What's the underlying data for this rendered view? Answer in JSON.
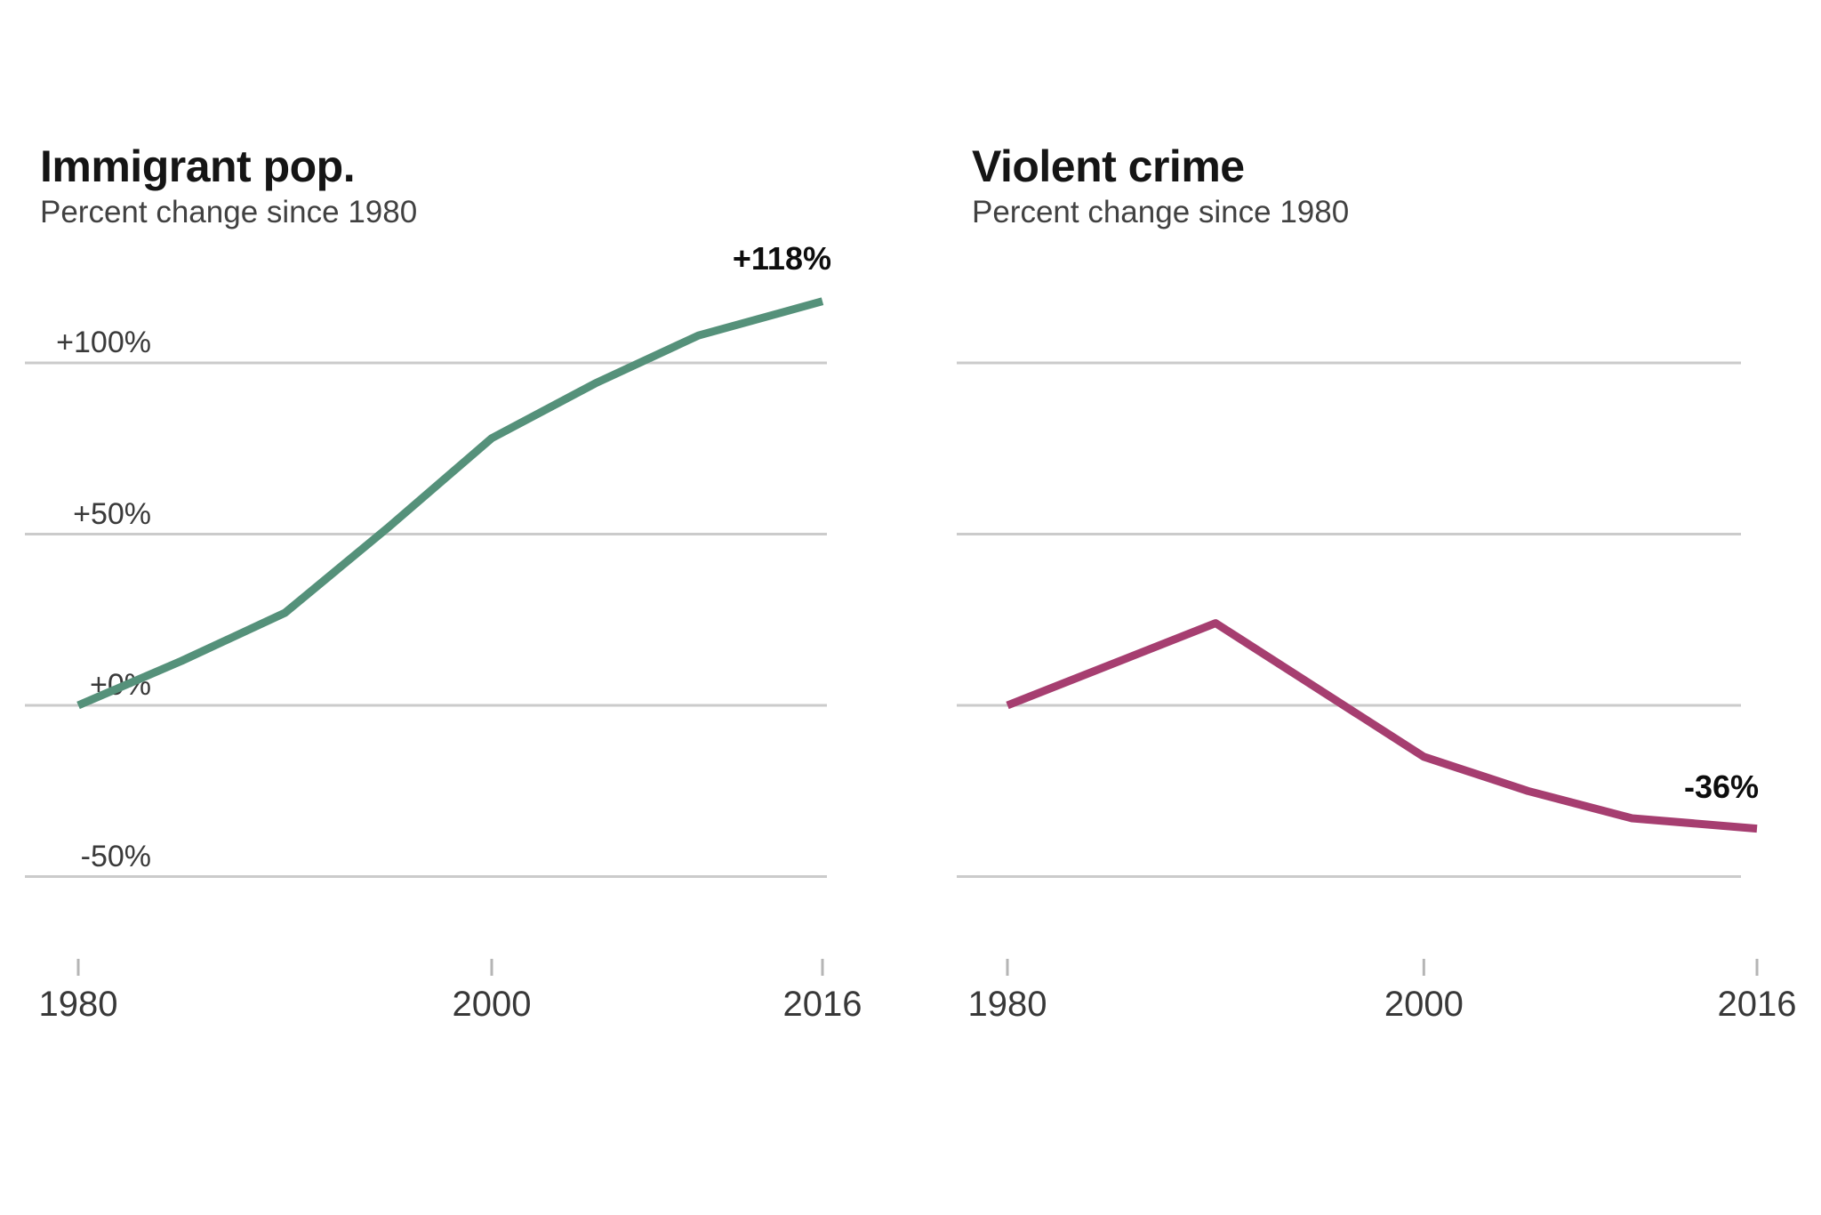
{
  "figure": {
    "background_color": "#ffffff",
    "grid_color": "#cbcbcb",
    "tick_color": "#b5b5b5"
  },
  "chart_data": [
    {
      "type": "line",
      "title": "Immigrant pop.",
      "subtitle": "Percent change since 1980",
      "end_label": "+118%",
      "line_color": "#55917a",
      "x": [
        1980,
        1985,
        1990,
        1995,
        2000,
        2005,
        2010,
        2016
      ],
      "values": [
        0,
        13,
        27,
        52,
        78,
        94,
        108,
        118
      ],
      "x_tick_labels": [
        "1980",
        "2000",
        "2016"
      ],
      "x_tick_years": [
        1980,
        2000,
        2016
      ],
      "y_tick_labels": [
        "+100%",
        "+50%",
        "+0%",
        "-50%"
      ],
      "y_tick_values": [
        100,
        50,
        0,
        -50
      ],
      "ylim": [
        -60,
        135
      ],
      "grid": true,
      "legend": "none"
    },
    {
      "type": "line",
      "title": "Violent crime",
      "subtitle": "Percent change since 1980",
      "end_label": "-36%",
      "line_color": "#a63e70",
      "x": [
        1980,
        1990,
        2000,
        2005,
        2010,
        2016
      ],
      "values": [
        0,
        24,
        -15,
        -25,
        -33,
        -36
      ],
      "x_tick_labels": [
        "1980",
        "2000",
        "2016"
      ],
      "x_tick_years": [
        1980,
        2000,
        2016
      ],
      "y_tick_labels": [],
      "y_tick_values": [
        100,
        50,
        0,
        -50
      ],
      "ylim": [
        -60,
        135
      ],
      "grid": true,
      "legend": "none"
    }
  ]
}
